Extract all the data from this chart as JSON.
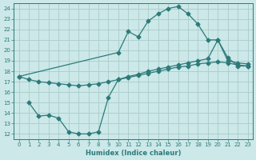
{
  "xlabel": "Humidex (Indice chaleur)",
  "bg_color": "#cce8e8",
  "grid_color": "#aacccc",
  "line_color": "#2d7a7a",
  "xlim": [
    -0.5,
    23.5
  ],
  "ylim": [
    11.5,
    24.5
  ],
  "xticks": [
    0,
    1,
    2,
    3,
    4,
    5,
    6,
    7,
    8,
    9,
    10,
    11,
    12,
    13,
    14,
    15,
    16,
    17,
    18,
    19,
    20,
    21,
    22,
    23
  ],
  "yticks": [
    12,
    13,
    14,
    15,
    16,
    17,
    18,
    19,
    20,
    21,
    22,
    23,
    24
  ],
  "curve_top_x": [
    0,
    10,
    11,
    12,
    13,
    14,
    15,
    16,
    17,
    18,
    19,
    20,
    21,
    22,
    23
  ],
  "curve_top_y": [
    17.5,
    19.8,
    21.8,
    21.3,
    22.8,
    23.5,
    24.0,
    24.2,
    23.5,
    22.5,
    21.0,
    21.0,
    19.3,
    18.5,
    18.5
  ],
  "curve_mid_x": [
    0,
    1,
    2,
    3,
    4,
    5,
    6,
    7,
    8,
    9,
    10,
    11,
    12,
    13,
    14,
    15,
    16,
    17,
    18,
    19,
    20,
    21,
    22,
    23
  ],
  "curve_mid_y": [
    17.5,
    17.2,
    17.0,
    16.9,
    16.8,
    16.7,
    16.6,
    16.7,
    16.8,
    17.0,
    17.2,
    17.4,
    17.6,
    17.8,
    18.0,
    18.2,
    18.4,
    18.5,
    18.7,
    18.8,
    18.9,
    18.8,
    18.6,
    18.5
  ],
  "curve_bot_x": [
    1,
    2,
    3,
    4,
    5,
    6,
    7,
    8,
    9,
    10,
    11,
    12,
    13,
    14,
    15,
    16,
    17,
    18,
    19,
    20,
    21,
    22,
    23
  ],
  "curve_bot_y": [
    15.0,
    13.7,
    13.8,
    13.5,
    12.2,
    12.0,
    12.0,
    12.2,
    15.5,
    17.2,
    17.5,
    17.7,
    18.0,
    18.2,
    18.4,
    18.6,
    18.8,
    19.0,
    19.2,
    21.0,
    19.0,
    18.8,
    18.7
  ]
}
